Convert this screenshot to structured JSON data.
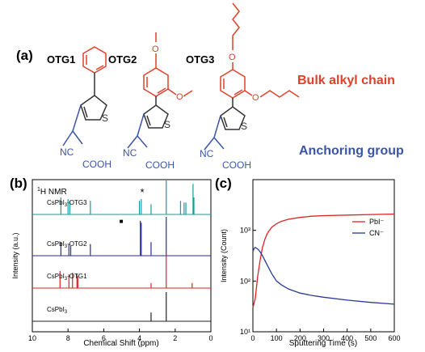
{
  "panel_a": {
    "label": "(a)",
    "molecules": [
      {
        "name": "OTG1",
        "atoms": {
          "s": "S",
          "cn": "NC",
          "cooh": "COOH"
        }
      },
      {
        "name": "OTG2",
        "atoms": {
          "s": "S",
          "cn": "NC",
          "cooh": "COOH",
          "o1": "O",
          "o2": "O"
        }
      },
      {
        "name": "OTG3",
        "atoms": {
          "s": "S",
          "cn": "NC",
          "cooh": "COOH",
          "o1": "O",
          "o2": "O"
        }
      }
    ],
    "annotations": {
      "bulk": "Bulk alkyl chain",
      "anchor": "Anchoring group"
    },
    "colors": {
      "bulk": "#e0402a",
      "anchor": "#3a55a8",
      "core": "#333333"
    }
  },
  "chart_data": [
    {
      "panel": "(b)",
      "type": "line",
      "title": "1H NMR",
      "xlabel": "Chemical Shift (ppm)",
      "ylabel": "Intensity (a.u.)",
      "xlim": [
        10,
        0
      ],
      "xticks": [
        "10",
        "8",
        "6",
        "4",
        "2",
        "0"
      ],
      "annotations": {
        "star": "*",
        "square": "■"
      },
      "series": [
        {
          "name": "CsPbI3-OTG3",
          "color": "#1a9a9a",
          "peaks": [
            [
              8.4,
              0.5
            ],
            [
              8.0,
              0.45
            ],
            [
              7.9,
              0.4
            ],
            [
              6.75,
              0.4
            ],
            [
              4.0,
              0.4
            ],
            [
              3.9,
              0.45
            ],
            [
              3.35,
              0.3
            ],
            [
              2.5,
              1.0
            ],
            [
              1.7,
              0.4
            ],
            [
              1.5,
              0.35
            ],
            [
              1.4,
              0.35
            ],
            [
              1.0,
              0.9
            ],
            [
              0.95,
              0.5
            ]
          ]
        },
        {
          "name": "CsPbI3-OTG2",
          "color": "#2a2aa8",
          "peaks": [
            [
              8.4,
              0.35
            ],
            [
              7.95,
              0.3
            ],
            [
              7.85,
              0.25
            ],
            [
              6.75,
              0.3
            ],
            [
              3.95,
              0.9
            ],
            [
              3.9,
              0.85
            ],
            [
              3.35,
              0.35
            ],
            [
              2.5,
              1.0
            ]
          ]
        },
        {
          "name": "CsPbI3-OTG1",
          "color": "#dd2222",
          "peaks": [
            [
              8.45,
              0.5
            ],
            [
              7.95,
              0.4
            ],
            [
              7.75,
              0.45
            ],
            [
              7.5,
              0.4
            ],
            [
              7.45,
              0.35
            ],
            [
              3.35,
              0.15
            ],
            [
              2.5,
              1.0
            ],
            [
              1.05,
              0.15
            ]
          ]
        },
        {
          "name": "CsPbI3",
          "color": "#222222",
          "peaks": [
            [
              3.35,
              0.3
            ],
            [
              2.5,
              1.0
            ]
          ]
        }
      ]
    },
    {
      "panel": "(c)",
      "type": "line",
      "xlabel": "Sputtering Time (s)",
      "ylabel": "Intensity (Count)",
      "xlim": [
        0,
        600
      ],
      "ylim": [
        10,
        10000
      ],
      "yscale": "log",
      "xticks": [
        "0",
        "100",
        "200",
        "300",
        "400",
        "500",
        "600"
      ],
      "yticks": [
        "10¹",
        "10²",
        "10³"
      ],
      "legend_position": "right",
      "series": [
        {
          "name": "PbI⁻",
          "color": "#dd2222",
          "x": [
            0,
            10,
            20,
            30,
            40,
            50,
            60,
            70,
            80,
            100,
            120,
            150,
            200,
            250,
            300,
            400,
            500,
            600
          ],
          "y": [
            30,
            45,
            120,
            250,
            450,
            650,
            850,
            1000,
            1150,
            1350,
            1500,
            1650,
            1800,
            1900,
            1950,
            2000,
            2050,
            2100
          ]
        },
        {
          "name": "CN⁻",
          "color": "#2a3a9a",
          "x": [
            0,
            5,
            10,
            20,
            30,
            40,
            50,
            60,
            80,
            100,
            120,
            150,
            200,
            250,
            300,
            400,
            500,
            600
          ],
          "y": [
            380,
            440,
            460,
            430,
            380,
            320,
            260,
            210,
            140,
            100,
            85,
            70,
            58,
            52,
            48,
            42,
            38,
            35
          ]
        }
      ]
    }
  ]
}
